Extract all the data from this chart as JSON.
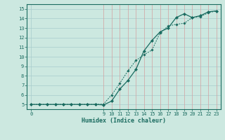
{
  "title": "",
  "xlabel": "Humidex (Indice chaleur)",
  "bg_color": "#cce8e0",
  "grid_color_v": "#d4a0a0",
  "grid_color_h": "#a8cccc",
  "line_color": "#1a6b60",
  "xlim": [
    -0.5,
    23.5
  ],
  "ylim": [
    4.5,
    15.5
  ],
  "xticks_minor": [
    1,
    2,
    3,
    4,
    5,
    6,
    7,
    8
  ],
  "xticks_major": [
    0,
    9,
    10,
    11,
    12,
    13,
    14,
    15,
    16,
    17,
    18,
    19,
    20,
    21,
    22,
    23
  ],
  "yticks": [
    5,
    6,
    7,
    8,
    9,
    10,
    11,
    12,
    13,
    14,
    15
  ],
  "line1_x": [
    0,
    1,
    2,
    3,
    4,
    5,
    6,
    7,
    8,
    9,
    10,
    11,
    12,
    13,
    14,
    15,
    16,
    17,
    18,
    19,
    20,
    21,
    22,
    23
  ],
  "line1_y": [
    5,
    5,
    5,
    5,
    5,
    5,
    5,
    5,
    5,
    4.95,
    5.35,
    6.6,
    7.5,
    8.65,
    10.6,
    11.7,
    12.6,
    13.0,
    14.1,
    14.5,
    14.1,
    14.3,
    14.7,
    14.8
  ],
  "line2_x": [
    0,
    1,
    2,
    3,
    4,
    5,
    6,
    7,
    8,
    9,
    10,
    11,
    12,
    13,
    14,
    15,
    16,
    17,
    18,
    19,
    20,
    21,
    22,
    23
  ],
  "line2_y": [
    5,
    5,
    5,
    5,
    5,
    5,
    5,
    5,
    5,
    5.05,
    6.0,
    7.2,
    8.5,
    9.6,
    10.2,
    10.7,
    12.5,
    13.2,
    13.4,
    13.5,
    14.1,
    14.2,
    14.6,
    14.8
  ]
}
